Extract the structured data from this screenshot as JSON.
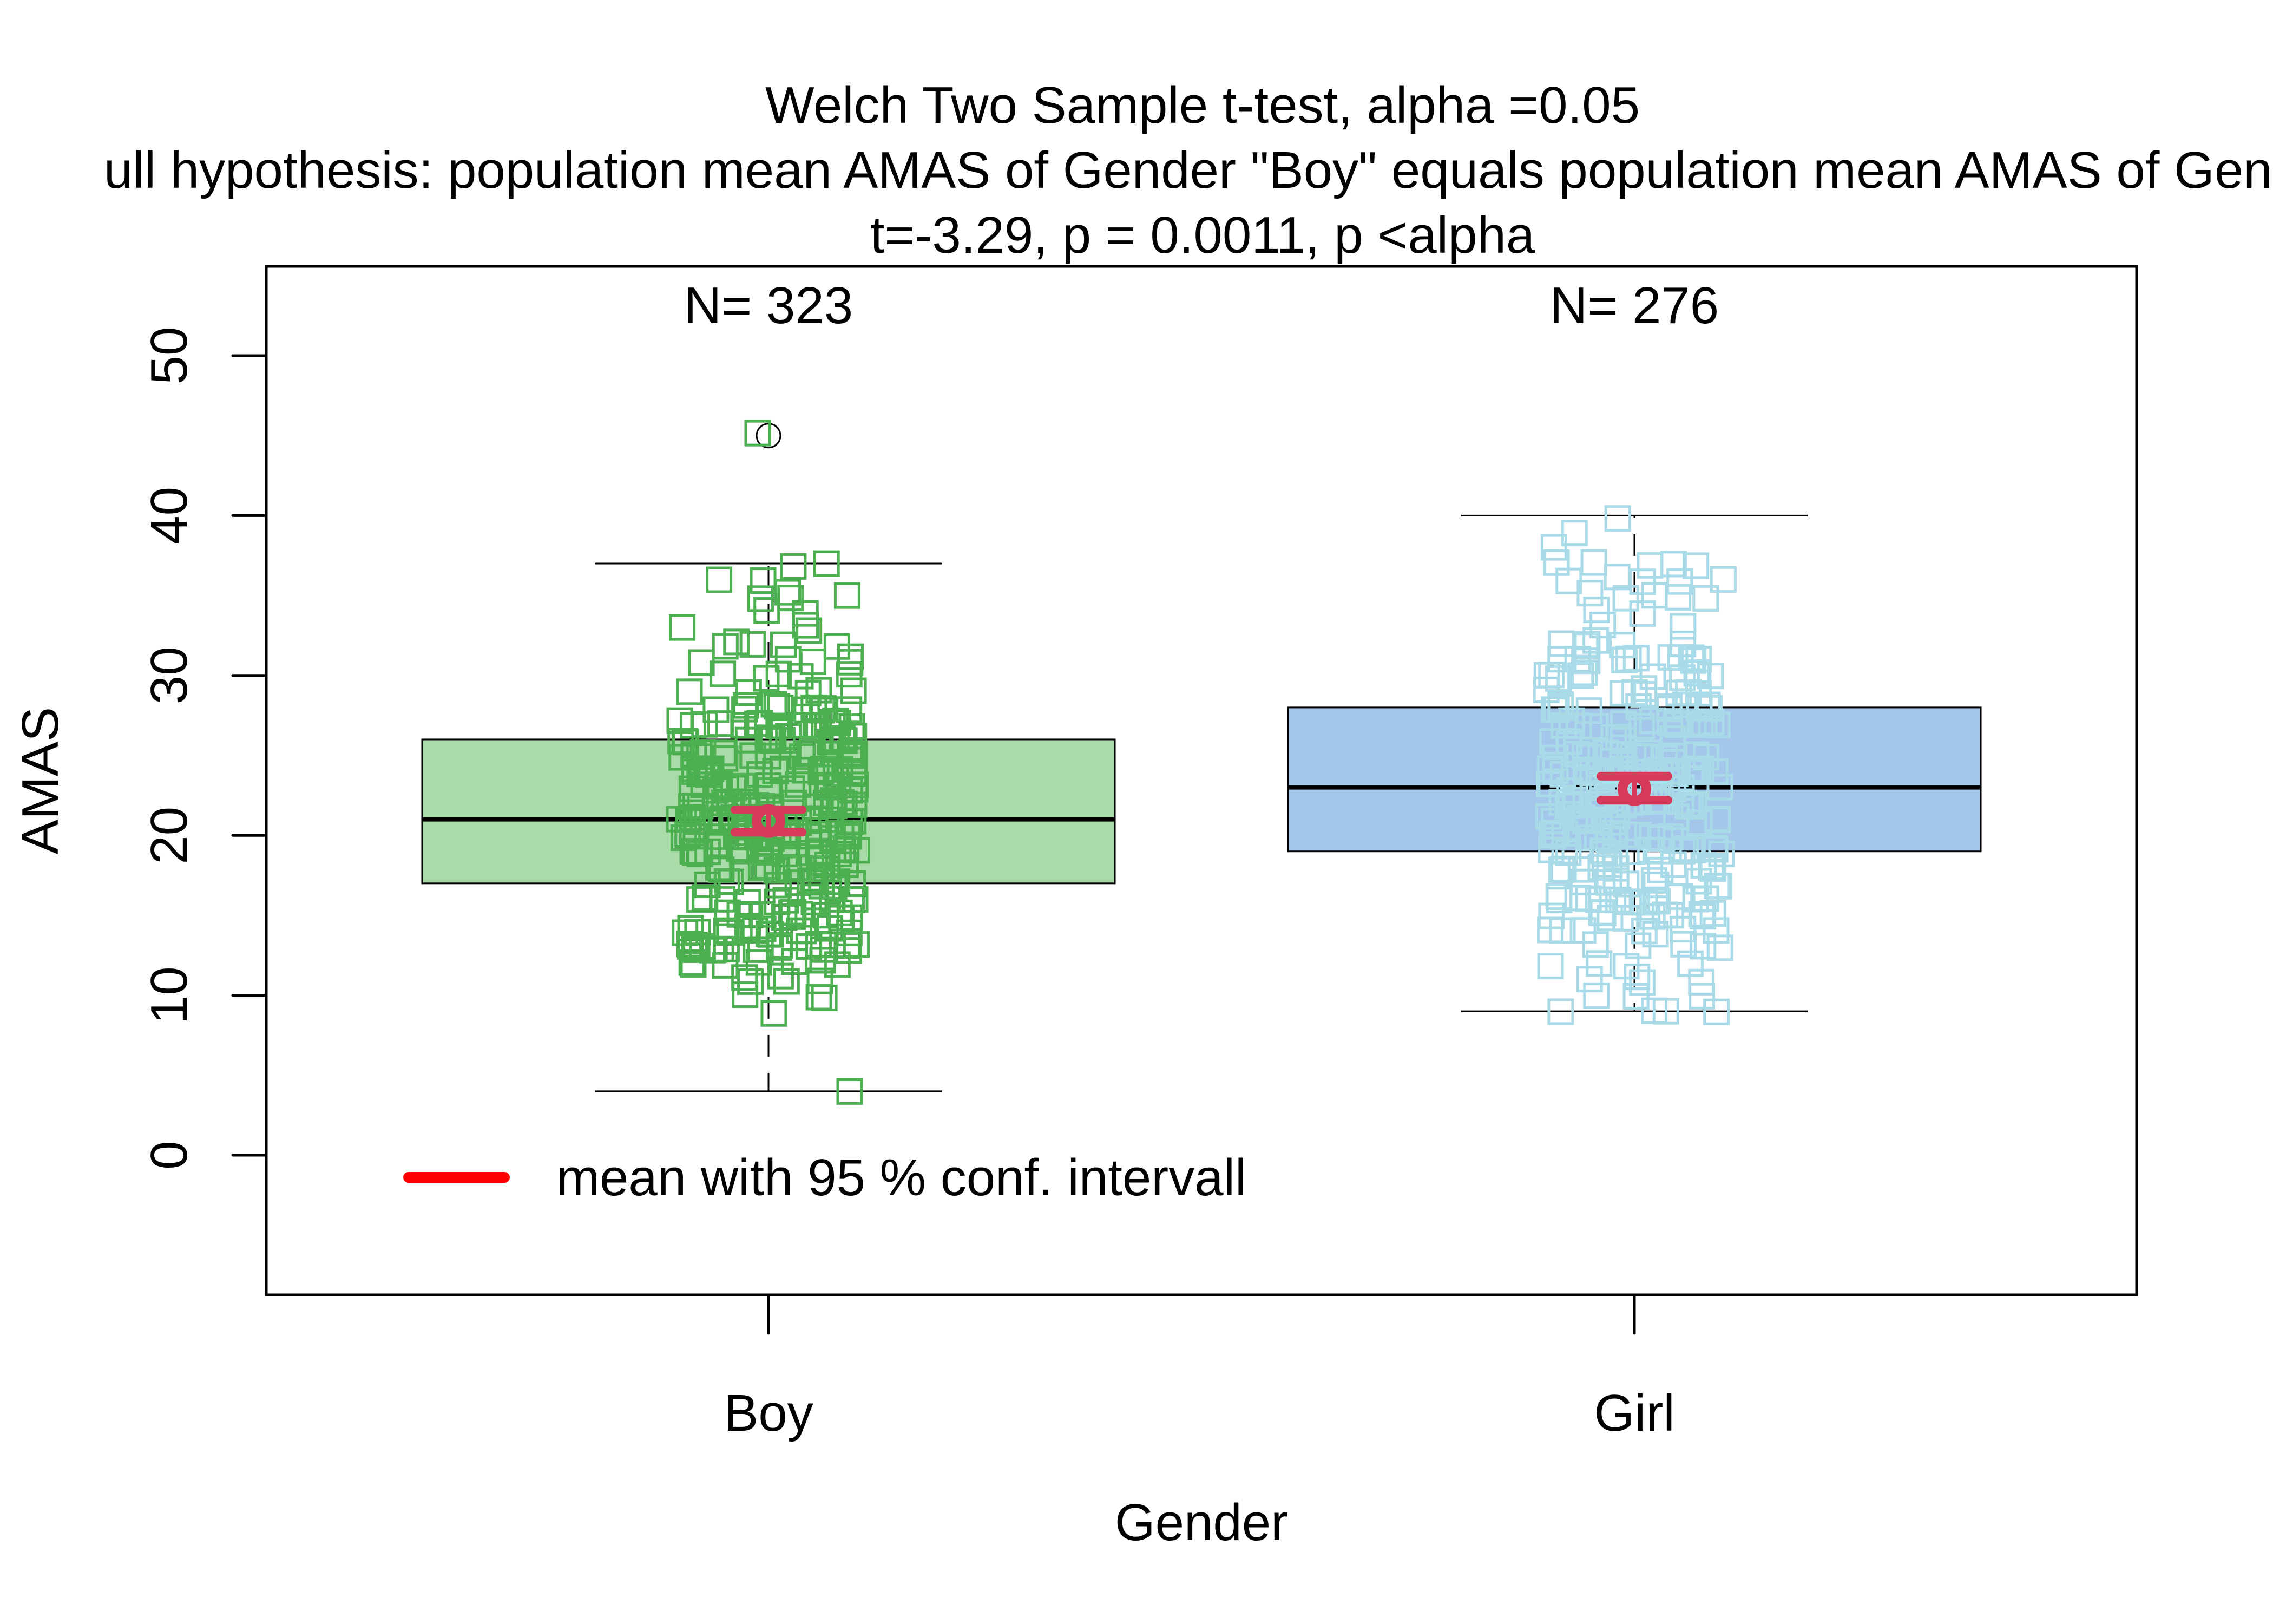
{
  "chart_data": {
    "type": "boxplot",
    "title_lines": [
      "Welch Two Sample t-test, alpha =0.05",
      "ull hypothesis: population mean AMAS of Gender \"Boy\" equals population mean AMAS of Gend",
      "t=-3.29, p = 0.0011, p <alpha"
    ],
    "xlabel": "Gender",
    "ylabel": "AMAS",
    "categories": [
      "Boy",
      "Girl"
    ],
    "ylim": [
      -8.6,
      55.6
    ],
    "yticks": [
      0,
      10,
      20,
      30,
      40,
      50
    ],
    "ytick_labels": [
      "0",
      "10",
      "20",
      "30",
      "40",
      "50"
    ],
    "grid": false,
    "groups": [
      {
        "name": "Boy",
        "n_label": "N= 323",
        "n": 323,
        "whisker_low": 4,
        "q1": 17,
        "median": 21,
        "q3": 26,
        "whisker_high": 37,
        "outliers": [
          45
        ],
        "mean": 20.9,
        "ci_low": 20.2,
        "ci_high": 21.6,
        "points_min": 4,
        "points_max": 45,
        "box_color": "#A9DBA8",
        "point_color": "#4CAF50"
      },
      {
        "name": "Girl",
        "n_label": "N= 276",
        "n": 276,
        "whisker_low": 9,
        "q1": 19,
        "median": 23,
        "q3": 28,
        "whisker_high": 40,
        "outliers": [],
        "mean": 22.9,
        "ci_low": 22.2,
        "ci_high": 23.7,
        "points_min": 9,
        "points_max": 40,
        "box_color": "#A4C6EA",
        "point_color": "#A8DAE8"
      }
    ],
    "mean_marker_color": "#D63A5A",
    "legend": {
      "label": "mean with 95 % conf. intervall",
      "color": "#FF0000",
      "position": "bottom-left"
    }
  }
}
